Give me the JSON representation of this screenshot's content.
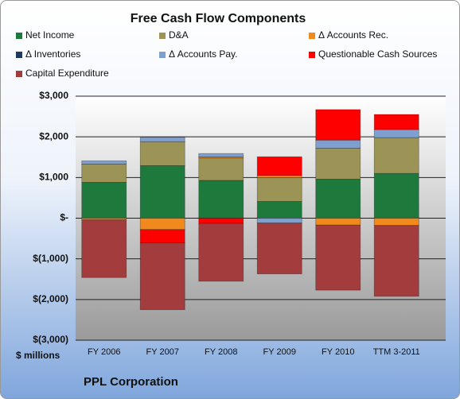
{
  "chart_data": {
    "type": "stacked_bar",
    "title": "Free Cash Flow Components",
    "y_label": "$ millions",
    "footer": "PPL Corporation",
    "categories": [
      "FY 2006",
      "FY 2007",
      "FY 2008",
      "FY 2009",
      "FY 2010",
      "TTM 3-2011"
    ],
    "series": [
      {
        "name": "Net Income",
        "color": "#1e7a3c",
        "values": [
          880,
          1290,
          930,
          410,
          960,
          1100
        ]
      },
      {
        "name": "D&A",
        "color": "#9c9456",
        "values": [
          450,
          590,
          550,
          590,
          760,
          880
        ]
      },
      {
        "name": "Δ Accounts Rec.",
        "color": "#f08a1c",
        "values": [
          -40,
          -280,
          30,
          50,
          -170,
          -180
        ]
      },
      {
        "name": "Δ Inventories",
        "color": "#1f3a5f",
        "values": [
          0,
          0,
          0,
          0,
          0,
          0
        ]
      },
      {
        "name": "Δ Accounts Pay.",
        "color": "#7f9fd0",
        "values": [
          80,
          110,
          80,
          -120,
          200,
          200
        ]
      },
      {
        "name": "Questionable Cash Sources",
        "color": "#ff0000",
        "values": [
          0,
          -330,
          -130,
          460,
          750,
          370
        ]
      },
      {
        "name": "Capital Expenditure",
        "color": "#a33d3d",
        "values": [
          -1420,
          -1640,
          -1420,
          -1250,
          -1600,
          -1740
        ]
      }
    ],
    "ylim": [
      -3000,
      3000
    ],
    "yticks": [
      {
        "value": 3000,
        "label": "$3,000"
      },
      {
        "value": 2000,
        "label": "$2,000"
      },
      {
        "value": 1000,
        "label": "$1,000"
      },
      {
        "value": 0,
        "label": "$-"
      },
      {
        "value": -1000,
        "label": "$(1,000)"
      },
      {
        "value": -2000,
        "label": "$(2,000)"
      },
      {
        "value": -3000,
        "label": "$(3,000)"
      }
    ],
    "grid": true
  }
}
